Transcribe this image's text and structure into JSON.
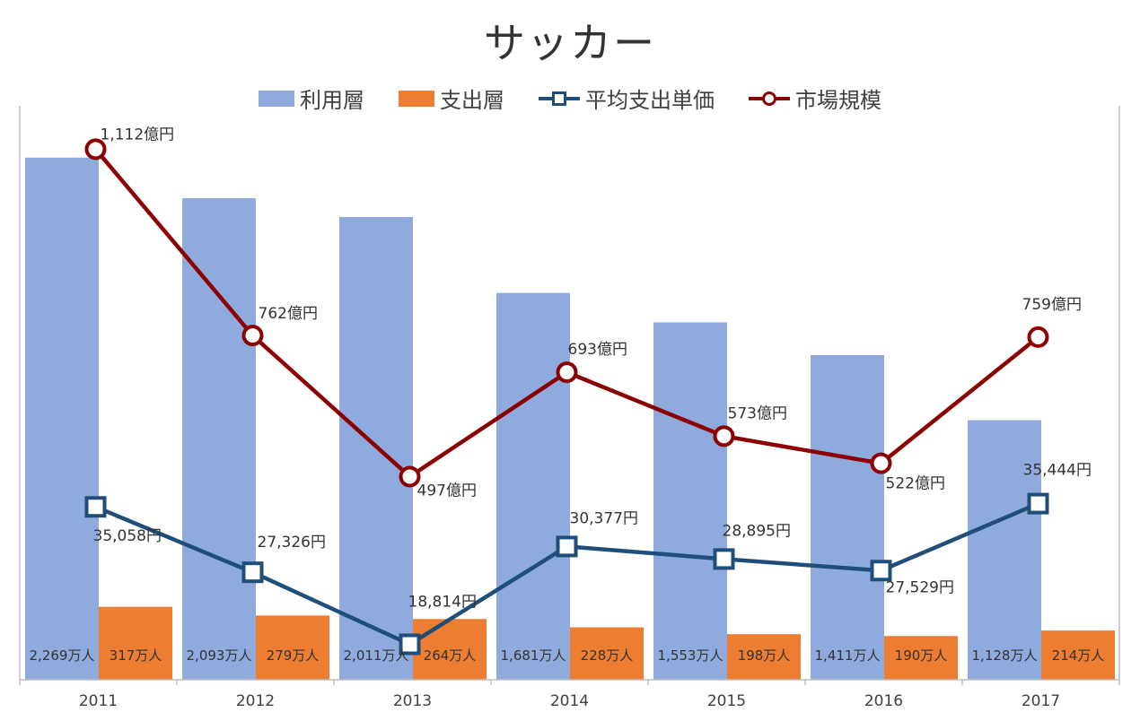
{
  "chart_data": {
    "type": "bar",
    "title": "サッカー",
    "categories": [
      "2011",
      "2012",
      "2013",
      "2014",
      "2015",
      "2016",
      "2017"
    ],
    "legend_position": "top",
    "grid": false,
    "series": [
      {
        "name": "利用層",
        "kind": "bar",
        "color": "#8faadc",
        "values": [
          2269,
          2093,
          2011,
          1681,
          1553,
          1411,
          1128
        ],
        "labels": [
          "2,269万人",
          "2,093万人",
          "2,011万人",
          "1,681万人",
          "1,553万人",
          "1,411万人",
          "1,128万人"
        ]
      },
      {
        "name": "支出層",
        "kind": "bar",
        "color": "#ed7d31",
        "values": [
          317,
          279,
          264,
          228,
          198,
          190,
          214
        ],
        "labels": [
          "317万人",
          "279万人",
          "264万人",
          "228万人",
          "198万人",
          "190万人",
          "214万人"
        ]
      },
      {
        "name": "平均支出単価",
        "kind": "line",
        "color": "#1f4e79",
        "marker": "square",
        "values": [
          35058,
          27326,
          18814,
          30377,
          28895,
          27529,
          35444
        ],
        "labels": [
          "35,058円",
          "27,326円",
          "18,814円",
          "30,377円",
          "28,895円",
          "27,529円",
          "35,444円"
        ]
      },
      {
        "name": "市場規模",
        "kind": "line",
        "color": "#8b0000",
        "marker": "circle",
        "values": [
          1112,
          762,
          497,
          693,
          573,
          522,
          759
        ],
        "labels": [
          "1,112億円",
          "762億円",
          "497億円",
          "693億円",
          "573億円",
          "522億円",
          "759億円"
        ]
      }
    ]
  }
}
